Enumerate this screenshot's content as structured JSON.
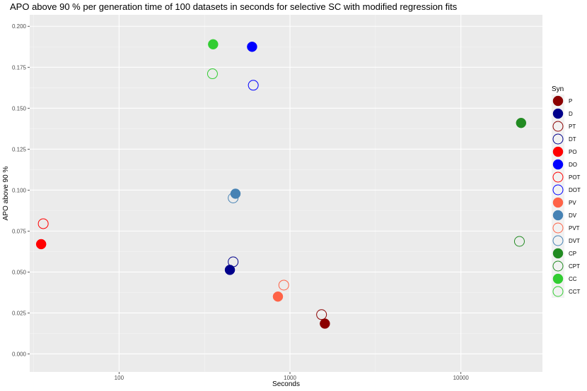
{
  "chart_data": {
    "type": "scatter",
    "title": "APO above 90 % per generation time of 100 datasets in seconds for selective SC with modified regression fits",
    "xlabel": "Seconds",
    "ylabel": "APO above 90 %",
    "x_scale": "log10",
    "xlim": [
      30,
      30000
    ],
    "ylim": [
      -0.011,
      0.207
    ],
    "x_ticks": [
      100,
      1000,
      10000
    ],
    "x_tick_labels": [
      "100",
      "1000",
      "10000"
    ],
    "y_ticks": [
      0.0,
      0.025,
      0.05,
      0.075,
      0.1,
      0.125,
      0.15,
      0.175,
      0.2
    ],
    "y_tick_labels": [
      "0.000",
      "0.025",
      "0.050",
      "0.075",
      "0.100",
      "0.125",
      "0.150",
      "0.175",
      "0.200"
    ],
    "grid": true,
    "legend_title": "Syn",
    "legend_position": "right",
    "series": [
      {
        "name": "P",
        "color": "#8B0000",
        "filled": true,
        "x": 1600,
        "y": 0.0185
      },
      {
        "name": "D",
        "color": "#00008B",
        "filled": true,
        "x": 445,
        "y": 0.0513
      },
      {
        "name": "PT",
        "color": "#8B0000",
        "filled": false,
        "x": 1530,
        "y": 0.024
      },
      {
        "name": "DT",
        "color": "#00008B",
        "filled": false,
        "x": 465,
        "y": 0.0562
      },
      {
        "name": "PO",
        "color": "#FF0000",
        "filled": true,
        "x": 35,
        "y": 0.067
      },
      {
        "name": "DO",
        "color": "#0000FF",
        "filled": true,
        "x": 600,
        "y": 0.1875
      },
      {
        "name": "POT",
        "color": "#FF0000",
        "filled": false,
        "x": 36,
        "y": 0.0795
      },
      {
        "name": "DOT",
        "color": "#0000FF",
        "filled": false,
        "x": 610,
        "y": 0.164
      },
      {
        "name": "PV",
        "color": "#FF6347",
        "filled": true,
        "x": 850,
        "y": 0.035
      },
      {
        "name": "DV",
        "color": "#4682B4",
        "filled": true,
        "x": 480,
        "y": 0.0978
      },
      {
        "name": "PVT",
        "color": "#FF6347",
        "filled": false,
        "x": 920,
        "y": 0.042
      },
      {
        "name": "DVT",
        "color": "#4682B4",
        "filled": false,
        "x": 465,
        "y": 0.0952
      },
      {
        "name": "CP",
        "color": "#228B22",
        "filled": true,
        "x": 22500,
        "y": 0.141
      },
      {
        "name": "CPT",
        "color": "#228B22",
        "filled": false,
        "x": 22000,
        "y": 0.0687
      },
      {
        "name": "CC",
        "color": "#32CD32",
        "filled": true,
        "x": 355,
        "y": 0.189
      },
      {
        "name": "CCT",
        "color": "#32CD32",
        "filled": false,
        "x": 352,
        "y": 0.171
      }
    ]
  }
}
